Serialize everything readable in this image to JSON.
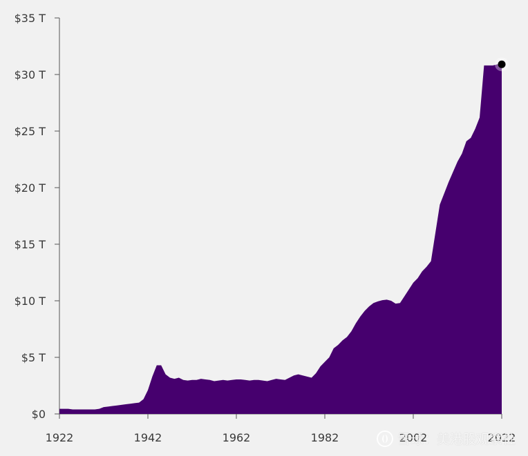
{
  "chart_data": {
    "type": "area",
    "title": "",
    "xlabel": "",
    "ylabel": "",
    "fill_color": "#46006e",
    "background_color": "#f1f1f1",
    "marker_color": "#000000",
    "xlim": [
      1922,
      2022
    ],
    "ylim": [
      0,
      35
    ],
    "x_ticks": [
      1922,
      1942,
      1962,
      1982,
      2002,
      2022
    ],
    "y_ticks": [
      {
        "value": 0,
        "label": "$0"
      },
      {
        "value": 5,
        "label": "$5 T"
      },
      {
        "value": 10,
        "label": "$10 T"
      },
      {
        "value": 15,
        "label": "$15 T"
      },
      {
        "value": 20,
        "label": "$20 T"
      },
      {
        "value": 25,
        "label": "$25 T"
      },
      {
        "value": 30,
        "label": "$30 T"
      },
      {
        "value": 35,
        "label": "$35 T"
      }
    ],
    "x": [
      1922,
      1923,
      1924,
      1925,
      1926,
      1927,
      1928,
      1929,
      1930,
      1931,
      1932,
      1933,
      1934,
      1935,
      1936,
      1937,
      1938,
      1939,
      1940,
      1941,
      1942,
      1943,
      1944,
      1945,
      1946,
      1947,
      1948,
      1949,
      1950,
      1951,
      1952,
      1953,
      1954,
      1955,
      1956,
      1957,
      1958,
      1959,
      1960,
      1961,
      1962,
      1963,
      1964,
      1965,
      1966,
      1967,
      1968,
      1969,
      1970,
      1971,
      1972,
      1973,
      1974,
      1975,
      1976,
      1977,
      1978,
      1979,
      1980,
      1981,
      1982,
      1983,
      1984,
      1985,
      1986,
      1987,
      1988,
      1989,
      1990,
      1991,
      1992,
      1993,
      1994,
      1995,
      1996,
      1997,
      1998,
      1999,
      2000,
      2001,
      2002,
      2003,
      2004,
      2005,
      2006,
      2007,
      2008,
      2009,
      2010,
      2011,
      2012,
      2013,
      2014,
      2015,
      2016,
      2017,
      2018,
      2019,
      2020,
      2021,
      2022
    ],
    "values": [
      0.45,
      0.45,
      0.45,
      0.4,
      0.4,
      0.4,
      0.4,
      0.4,
      0.4,
      0.45,
      0.6,
      0.65,
      0.7,
      0.75,
      0.8,
      0.85,
      0.9,
      0.95,
      1.0,
      1.3,
      2.1,
      3.3,
      4.3,
      4.3,
      3.5,
      3.2,
      3.1,
      3.2,
      3.0,
      2.95,
      3.0,
      3.0,
      3.1,
      3.05,
      3.0,
      2.9,
      2.95,
      3.0,
      2.95,
      3.0,
      3.05,
      3.05,
      3.0,
      2.95,
      3.0,
      3.0,
      2.95,
      2.9,
      3.0,
      3.1,
      3.05,
      3.0,
      3.2,
      3.4,
      3.5,
      3.4,
      3.3,
      3.2,
      3.6,
      4.2,
      4.6,
      5.0,
      5.8,
      6.1,
      6.5,
      6.8,
      7.3,
      8.0,
      8.6,
      9.1,
      9.5,
      9.8,
      9.95,
      10.05,
      10.1,
      10.0,
      9.75,
      9.8,
      10.4,
      11.0,
      11.6,
      12.0,
      12.6,
      13.0,
      13.5,
      16.0,
      18.5,
      19.5,
      20.5,
      21.4,
      22.3,
      23.0,
      24.1,
      24.4,
      25.2,
      26.2,
      30.8,
      30.8,
      30.8,
      30.9,
      30.9
    ],
    "last_point": {
      "x": 2022,
      "y": 30.9
    }
  },
  "watermark": {
    "text": "雪球：美港股观察社"
  }
}
